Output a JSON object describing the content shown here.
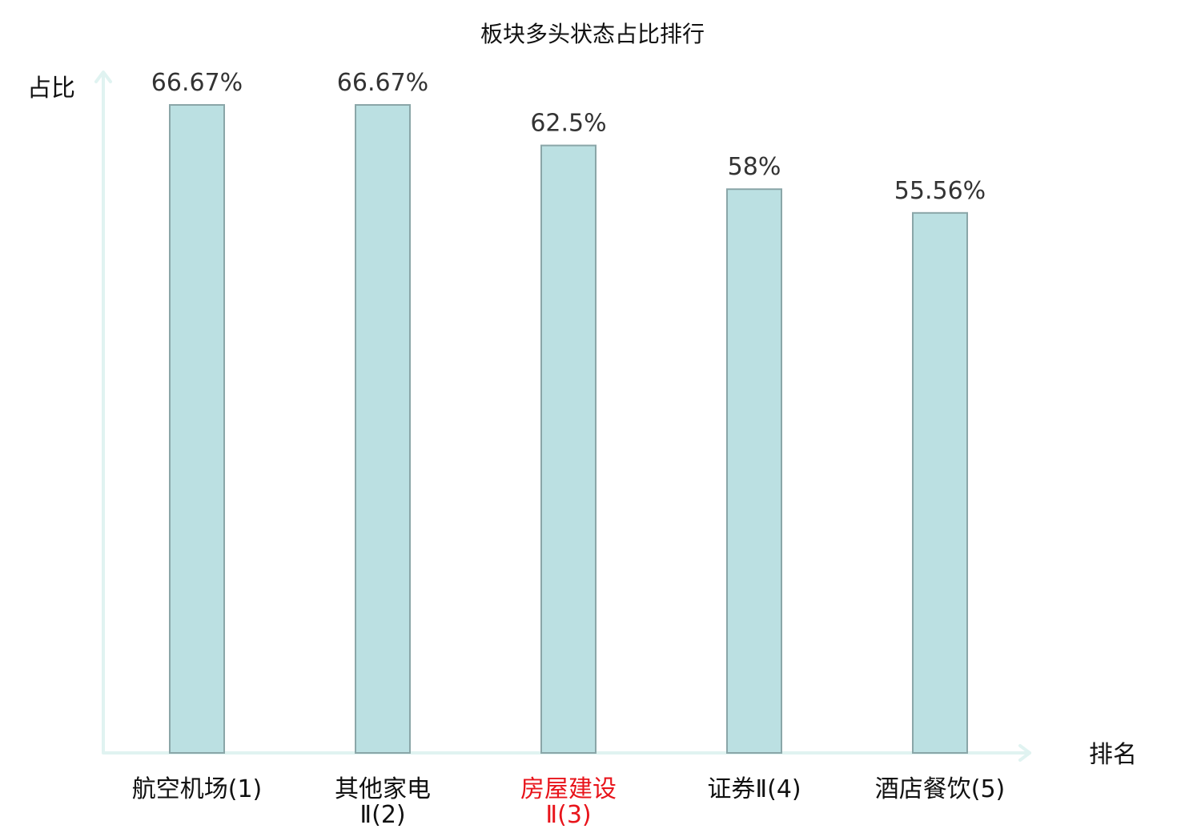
{
  "chart_data": {
    "type": "bar",
    "title": "板块多头状态占比排行",
    "xlabel": "排名",
    "ylabel": "占比",
    "categories": [
      {
        "lines": [
          "航空机场(1)"
        ],
        "highlight": false
      },
      {
        "lines": [
          "其他家电",
          "Ⅱ(2)"
        ],
        "highlight": false
      },
      {
        "lines": [
          "房屋建设",
          "Ⅱ(3)"
        ],
        "highlight": true
      },
      {
        "lines": [
          "证券Ⅱ(4)"
        ],
        "highlight": false
      },
      {
        "lines": [
          "酒店餐饮(5)"
        ],
        "highlight": false
      }
    ],
    "values": [
      66.67,
      66.67,
      62.5,
      58,
      55.56
    ],
    "value_labels": [
      "66.67%",
      "66.67%",
      "62.5%",
      "58%",
      "55.56%"
    ],
    "ylim": [
      0,
      66.67
    ],
    "grid": false,
    "colors": {
      "bar_fill": "#bbe0e2",
      "bar_stroke": "#8aa6a8",
      "axis": "#e0f3f1",
      "label": "#111111",
      "highlight": "#e8141b"
    }
  }
}
